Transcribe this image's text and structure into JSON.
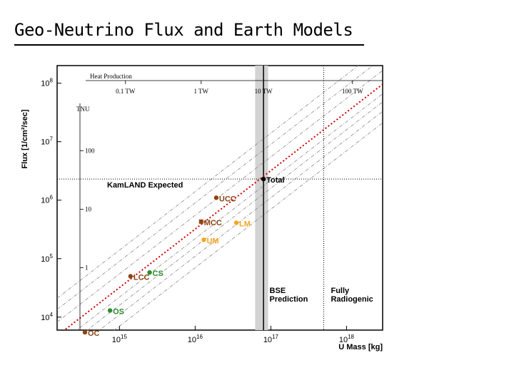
{
  "slide": {
    "title": "Geo-Neutrino Flux and Earth Models"
  },
  "chart_data": {
    "type": "scatter",
    "title": "",
    "xlabel": "U Mass [kg]",
    "ylabel": "Flux [1/cm²/sec]",
    "xscale": "log",
    "yscale": "log",
    "xlim": [
      150000000000000.0,
      3e+18
    ],
    "ylim": [
      6000,
      200000000.0
    ],
    "x_ticks": [
      {
        "value": 1000000000000000.0,
        "base": "10",
        "exp": "15"
      },
      {
        "value": 1e+16,
        "base": "10",
        "exp": "16"
      },
      {
        "value": 1e+17,
        "base": "10",
        "exp": "17"
      },
      {
        "value": 1e+18,
        "base": "10",
        "exp": "18"
      }
    ],
    "y_ticks": [
      {
        "value": 10000.0,
        "base": "10",
        "exp": "4"
      },
      {
        "value": 100000.0,
        "base": "10",
        "exp": "5"
      },
      {
        "value": 1000000.0,
        "base": "10",
        "exp": "6"
      },
      {
        "value": 10000000.0,
        "base": "10",
        "exp": "7"
      },
      {
        "value": 100000000.0,
        "base": "10",
        "exp": "8"
      }
    ],
    "heat_production_axis": {
      "label": "Heat Production",
      "ticks": [
        {
          "label": "0.1 TW",
          "x": 1200000000000000.0
        },
        {
          "label": "1 TW",
          "x": 1.2e+16
        },
        {
          "label": "10 TW",
          "x": 8e+16
        },
        {
          "label": "100 TW",
          "x": 1.2e+18
        }
      ]
    },
    "tnu_axis": {
      "label": "TNU",
      "ticks": [
        {
          "label": "100",
          "y": 2700000.0,
          "yv": 7000000.0
        },
        {
          "label": "10",
          "y": 270000.0,
          "yv": 700000.0
        },
        {
          "label": "1",
          "y": 27000.0,
          "yv": 70000.0
        }
      ]
    },
    "kamland_expected": {
      "label": "KamLAND Expected",
      "flux": 2300000.0
    },
    "bse_prediction": {
      "label_line1": "BSE",
      "label_line2": "Prediction",
      "x_range": [
        6.2e+16,
        9.2e+16
      ],
      "x_center": 8e+16
    },
    "fully_radiogenic": {
      "label_line1": "Fully",
      "label_line2": "Radiogenic",
      "x": 5e+17
    },
    "points": [
      {
        "label": "Total",
        "x": 8e+16,
        "y": 2300000.0,
        "color": "#000000",
        "marker": "circle"
      },
      {
        "label": "UCC",
        "x": 1.9e+16,
        "y": 1100000.0,
        "color": "#8b4513",
        "marker": "circle"
      },
      {
        "label": "MCC",
        "x": 1.2e+16,
        "y": 430000.0,
        "color": "#8b4513",
        "marker": "square"
      },
      {
        "label": "LM",
        "x": 3.5e+16,
        "y": 410000.0,
        "color": "#f5a623",
        "marker": "circle"
      },
      {
        "label": "UM",
        "x": 1.3e+16,
        "y": 210000.0,
        "color": "#f5a623",
        "marker": "circle"
      },
      {
        "label": "CS",
        "x": 2500000000000000.0,
        "y": 58000.0,
        "color": "#2e8b2e",
        "marker": "circle"
      },
      {
        "label": "LCC",
        "x": 1400000000000000.0,
        "y": 50000.0,
        "color": "#8b4513",
        "marker": "circle"
      },
      {
        "label": "OS",
        "x": 750000000000000.0,
        "y": 13000.0,
        "color": "#2e8b2e",
        "marker": "circle"
      },
      {
        "label": "OC",
        "x": 350000000000000.0,
        "y": 5500.0,
        "color": "#8b4513",
        "marker": "circle"
      }
    ],
    "fit_line": {
      "color": "#cc0000",
      "x_start": 150000000000000.0,
      "x_end": 3e+18,
      "y_at_1e15": 32000.0,
      "slope": 1
    },
    "band_lines": [
      {
        "y_at_1e15": 140000.0
      },
      {
        "y_at_1e15": 90000.0
      },
      {
        "y_at_1e15": 55000.0
      },
      {
        "y_at_1e15": 22000.0
      },
      {
        "y_at_1e15": 16000.0
      },
      {
        "y_at_1e15": 11000.0
      },
      {
        "y_at_1e15": 7000.0
      }
    ],
    "grid": false
  }
}
